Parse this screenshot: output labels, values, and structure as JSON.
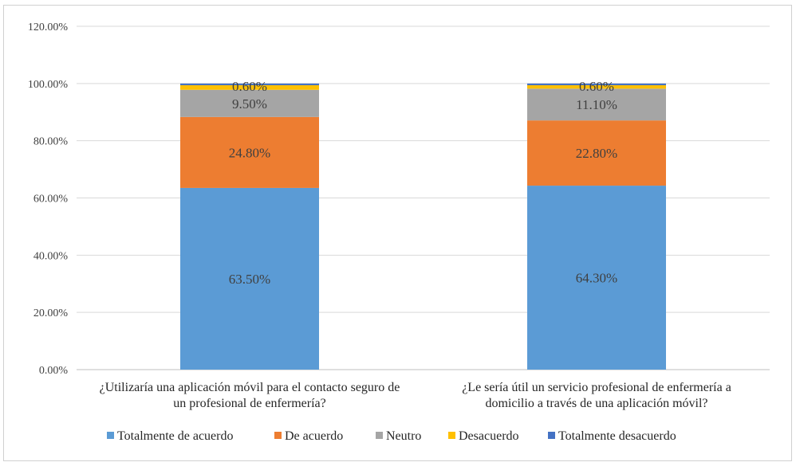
{
  "chart_data": {
    "type": "bar",
    "stacked": true,
    "categories": [
      [
        "¿Utilizaría una aplicación móvil para el contacto seguro de",
        "un profesional de enfermería?"
      ],
      [
        "¿Le sería útil un servicio profesional de enfermería a",
        "domicilio a través de una aplicación móvil?"
      ]
    ],
    "series": [
      {
        "name": "Totalmente de acuerdo",
        "color": "#5B9BD5",
        "values": [
          63.5,
          64.3
        ],
        "labels": [
          "63.50%",
          "64.30%"
        ]
      },
      {
        "name": "De acuerdo",
        "color": "#ED7D31",
        "values": [
          24.8,
          22.8
        ],
        "labels": [
          "24.80%",
          "22.80%"
        ]
      },
      {
        "name": "Neutro",
        "color": "#A5A5A5",
        "values": [
          9.5,
          11.1
        ],
        "labels": [
          "9.50%",
          "11.10%"
        ]
      },
      {
        "name": "Desacuerdo",
        "color": "#FFC000",
        "values": [
          1.6,
          1.2
        ],
        "labels": [
          "",
          ""
        ]
      },
      {
        "name": "Totalmente desacuerdo",
        "color": "#4472C4",
        "values": [
          0.6,
          0.6
        ],
        "labels": [
          "0.60%",
          "0.60%"
        ]
      }
    ],
    "yticks": [
      "0.00%",
      "20.00%",
      "40.00%",
      "60.00%",
      "80.00%",
      "100.00%",
      "120.00%"
    ],
    "ylim": [
      0,
      120
    ],
    "grid": true,
    "legend_position": "bottom"
  }
}
